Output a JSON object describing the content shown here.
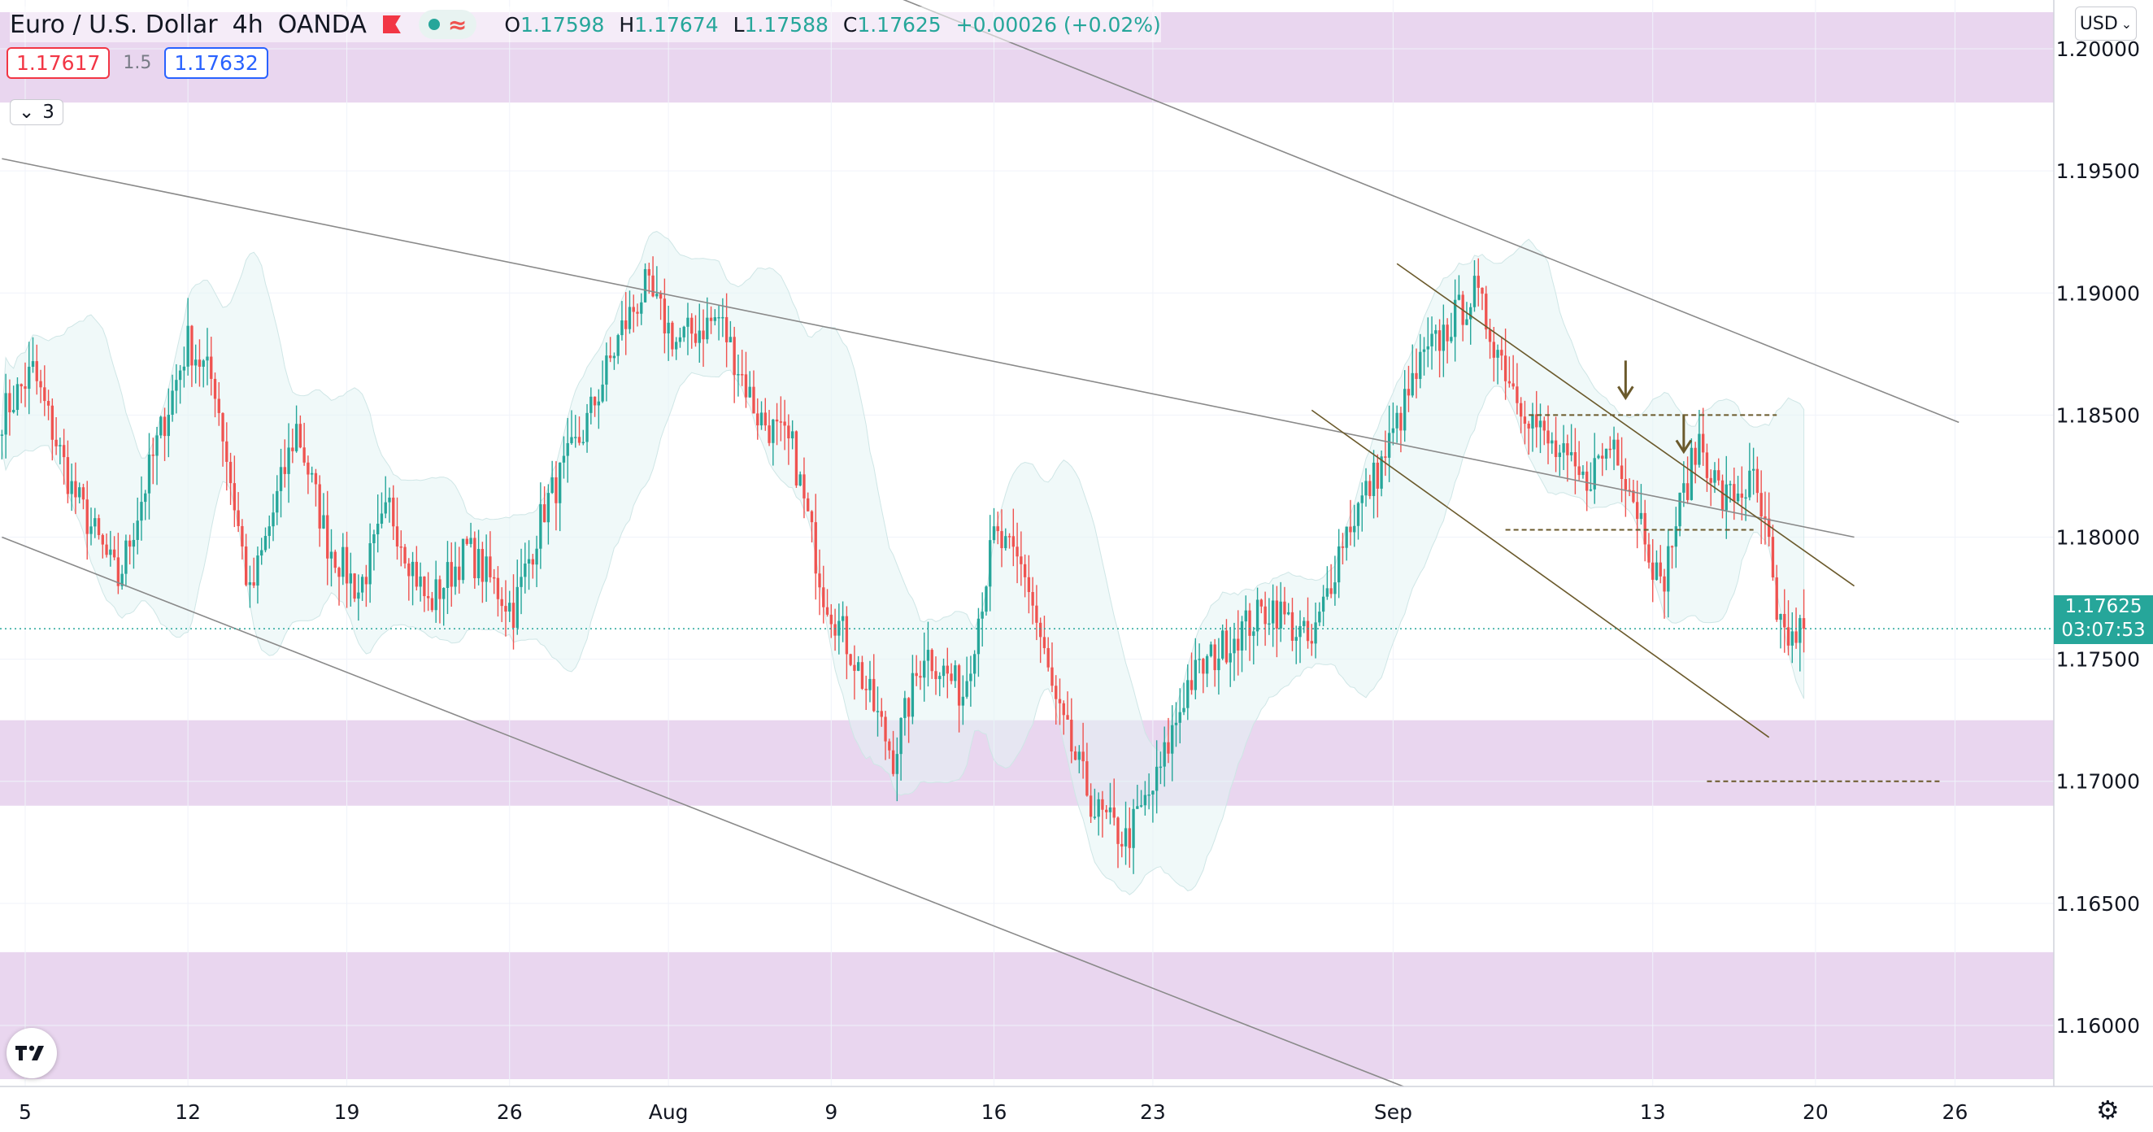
{
  "header": {
    "symbol_title": "Euro / U.S. Dollar",
    "interval": "4h",
    "broker": "OANDA",
    "ohlc": {
      "o_label": "O",
      "o": "1.17598",
      "h_label": "H",
      "h": "1.17674",
      "l_label": "L",
      "l": "1.17588",
      "c_label": "C",
      "c": "1.17625",
      "change": "+0.00026 (+0.02%)"
    }
  },
  "trade": {
    "sell_price": "1.17617",
    "spread": "1.5",
    "buy_price": "1.17632"
  },
  "indicators_toggle": {
    "count": "3"
  },
  "currency_button": {
    "label": "USD"
  },
  "last_price": {
    "price": "1.17625",
    "countdown": "03:07:53"
  },
  "colors": {
    "up": "#26a69a",
    "down": "#ef5350",
    "zone": "#e9d6ef",
    "band": "#e4f4f4",
    "line": "#8a8a8a",
    "annot": "#6b5a2c"
  },
  "chart_data": {
    "type": "candlestick",
    "y_ticks": [
      "1.16000",
      "1.16500",
      "1.17000",
      "1.17500",
      "1.18000",
      "1.18500",
      "1.19000",
      "1.19500",
      "1.20000"
    ],
    "x_ticks": [
      {
        "label": "5",
        "bar": 6
      },
      {
        "label": "12",
        "bar": 48
      },
      {
        "label": "19",
        "bar": 89
      },
      {
        "label": "26",
        "bar": 131
      },
      {
        "label": "Aug",
        "bar": 172
      },
      {
        "label": "9",
        "bar": 214
      },
      {
        "label": "16",
        "bar": 256
      },
      {
        "label": "23",
        "bar": 297
      },
      {
        "label": "Sep",
        "bar": 359
      },
      {
        "label": "13",
        "bar": 426
      },
      {
        "label": "20",
        "bar": 468
      },
      {
        "label": "26",
        "bar": 504
      }
    ],
    "ylim": [
      1.1575,
      1.202
    ],
    "bars_visible": 530,
    "last_bar": 460,
    "support_resistance_zones": [
      [
        1.1978,
        1.2015
      ],
      [
        1.169,
        1.1725
      ],
      [
        1.1578,
        1.163
      ]
    ],
    "key_points": [
      [
        0,
        1.185
      ],
      [
        8,
        1.1868
      ],
      [
        18,
        1.182
      ],
      [
        30,
        1.1782
      ],
      [
        40,
        1.1838
      ],
      [
        48,
        1.188
      ],
      [
        55,
        1.1862
      ],
      [
        64,
        1.1775
      ],
      [
        76,
        1.1845
      ],
      [
        84,
        1.1798
      ],
      [
        92,
        1.1778
      ],
      [
        100,
        1.1812
      ],
      [
        110,
        1.1772
      ],
      [
        120,
        1.1795
      ],
      [
        132,
        1.177
      ],
      [
        140,
        1.1812
      ],
      [
        150,
        1.1843
      ],
      [
        160,
        1.1885
      ],
      [
        166,
        1.1902
      ],
      [
        174,
        1.188
      ],
      [
        185,
        1.189
      ],
      [
        195,
        1.185
      ],
      [
        204,
        1.1836
      ],
      [
        212,
        1.1778
      ],
      [
        220,
        1.175
      ],
      [
        230,
        1.171
      ],
      [
        238,
        1.1754
      ],
      [
        248,
        1.1736
      ],
      [
        256,
        1.18
      ],
      [
        264,
        1.1786
      ],
      [
        272,
        1.173
      ],
      [
        282,
        1.1688
      ],
      [
        290,
        1.1676
      ],
      [
        298,
        1.17
      ],
      [
        306,
        1.174
      ],
      [
        318,
        1.176
      ],
      [
        328,
        1.1772
      ],
      [
        338,
        1.1755
      ],
      [
        346,
        1.18
      ],
      [
        356,
        1.183
      ],
      [
        366,
        1.187
      ],
      [
        374,
        1.1888
      ],
      [
        380,
        1.19
      ],
      [
        390,
        1.1862
      ],
      [
        398,
        1.184
      ],
      [
        408,
        1.1822
      ],
      [
        416,
        1.184
      ],
      [
        424,
        1.1803
      ],
      [
        428,
        1.1778
      ],
      [
        432,
        1.1806
      ],
      [
        438,
        1.184
      ],
      [
        444,
        1.1815
      ],
      [
        452,
        1.1822
      ],
      [
        456,
        1.1795
      ],
      [
        458,
        1.1762
      ],
      [
        462,
        1.1758
      ],
      [
        465,
        1.17625
      ]
    ],
    "trend_lines": [
      {
        "name": "upper-long",
        "p1": [
          170,
          1.206
        ],
        "p2": [
          505,
          1.1847
        ]
      },
      {
        "name": "mid-long",
        "p1": [
          0,
          1.1955
        ],
        "p2": [
          478,
          1.18
        ]
      },
      {
        "name": "lower-long",
        "p1": [
          0,
          1.18
        ],
        "p2": [
          397,
          1.1553
        ]
      },
      {
        "name": "channel-upper",
        "p1": [
          360,
          1.1912
        ],
        "p2": [
          478,
          1.178
        ]
      },
      {
        "name": "channel-lower",
        "p1": [
          338,
          1.1852
        ],
        "p2": [
          456,
          1.1718
        ]
      }
    ],
    "horizontal_levels": [
      {
        "price": 1.185,
        "from": 394,
        "to": 458,
        "dashed": true
      },
      {
        "price": 1.1803,
        "from": 388,
        "to": 452,
        "dashed": true
      },
      {
        "price": 1.17,
        "from": 440,
        "to": 500,
        "dashed": true
      }
    ],
    "arrows": [
      {
        "bar": 419,
        "price": 1.1857
      },
      {
        "bar": 434,
        "price": 1.1835
      }
    ],
    "last_price_line": 1.17625
  }
}
